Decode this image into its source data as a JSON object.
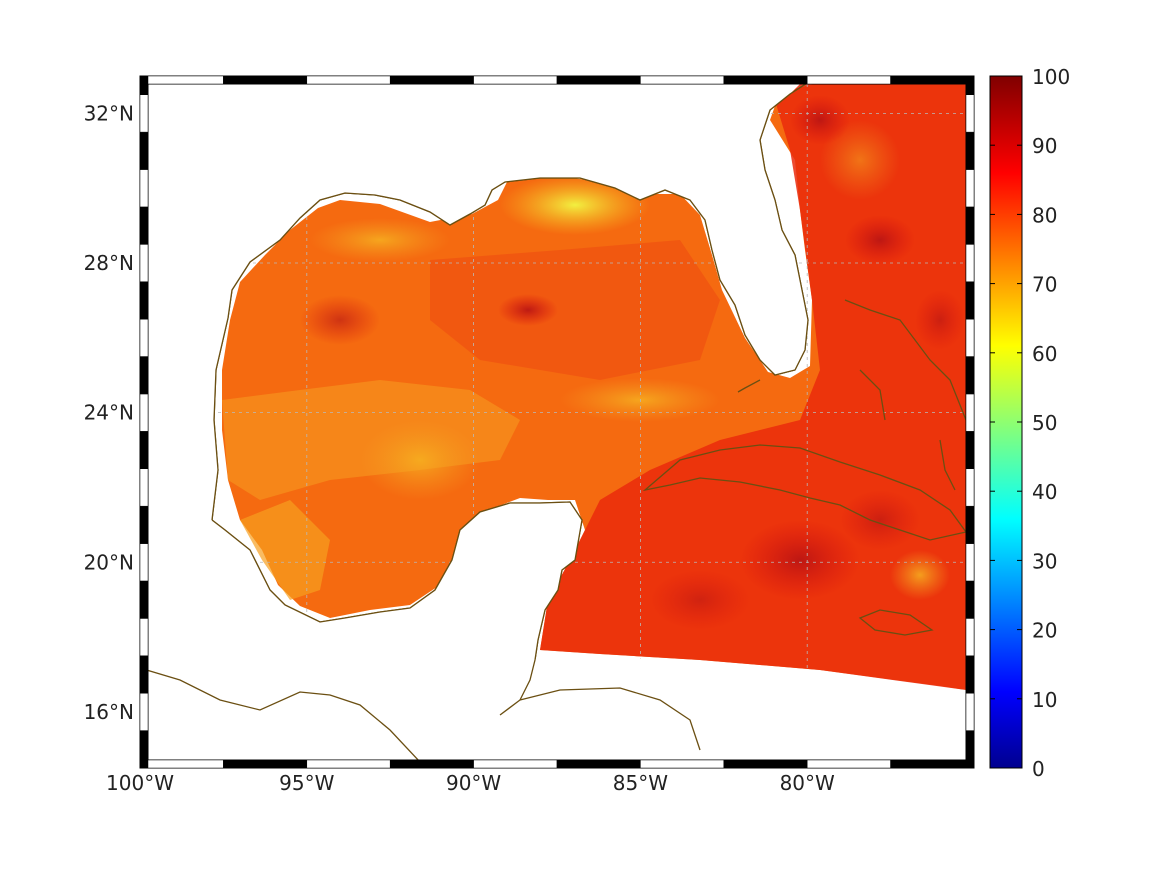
{
  "map": {
    "lon_range": [
      -100,
      -75
    ],
    "lat_range": [
      14.5,
      33
    ],
    "lon_ticks": [
      {
        "value": -100,
        "label": "100°W"
      },
      {
        "value": -95,
        "label": "95°W"
      },
      {
        "value": -90,
        "label": "90°W"
      },
      {
        "value": -85,
        "label": "85°W"
      },
      {
        "value": -80,
        "label": "80°W"
      }
    ],
    "lat_ticks": [
      {
        "value": 32,
        "label": "32°N"
      },
      {
        "value": 28,
        "label": "28°N"
      },
      {
        "value": 24,
        "label": "24°N"
      },
      {
        "value": 20,
        "label": "20°N"
      },
      {
        "value": 16,
        "label": "16°N"
      }
    ],
    "grid": true,
    "coastline_color": "#6b4f12",
    "land_color": "#ffffff"
  },
  "colorbar": {
    "min": 0,
    "max": 100,
    "ticks": [
      {
        "value": 0,
        "label": "0"
      },
      {
        "value": 10,
        "label": "10"
      },
      {
        "value": 20,
        "label": "20"
      },
      {
        "value": 30,
        "label": "30"
      },
      {
        "value": 40,
        "label": "40"
      },
      {
        "value": 50,
        "label": "50"
      },
      {
        "value": 60,
        "label": "60"
      },
      {
        "value": 70,
        "label": "70"
      },
      {
        "value": 80,
        "label": "80"
      },
      {
        "value": 90,
        "label": "90"
      },
      {
        "value": 100,
        "label": "100"
      }
    ],
    "colormap": "jet"
  }
}
